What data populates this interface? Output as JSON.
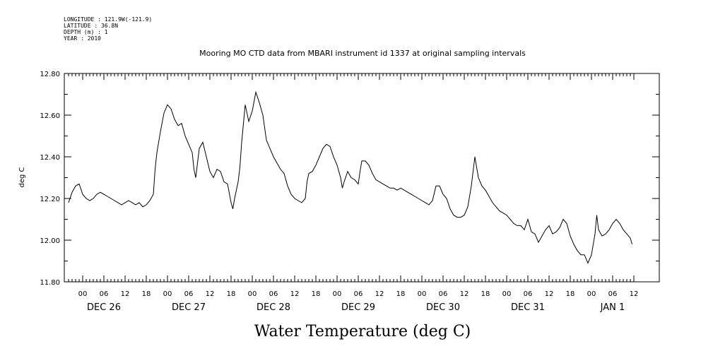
{
  "metadata": [
    "LONGITUDE : 121.9W(-121.9)",
    "LATITUDE : 36.8N",
    "DEPTH (m) : 1",
    "YEAR : 2010"
  ],
  "chart_data": {
    "type": "line",
    "title": "Mooring MO CTD data from MBARI instrument id 1337 at original sampling intervals",
    "xlabel": "Water Temperature (deg C)",
    "ylabel": "deg C",
    "ylim": [
      11.8,
      12.8
    ],
    "y_ticks": [
      "11.80",
      "12.00",
      "12.20",
      "12.40",
      "12.60",
      "12.80"
    ],
    "x_unit": "hours since 2010-12-26 00:00",
    "xlim": [
      -4,
      156
    ],
    "hour_tick_labels": [
      "00",
      "06",
      "12",
      "18"
    ],
    "day_labels": [
      "DEC 26",
      "DEC 27",
      "DEC 28",
      "DEC 29",
      "DEC 30",
      "DEC 31",
      "JAN  1"
    ],
    "grid": false,
    "series": [
      {
        "values": [
          [
            -4,
            12.18
          ],
          [
            -3,
            12.23
          ],
          [
            -2,
            12.26
          ],
          [
            -1,
            12.27
          ],
          [
            0,
            12.22
          ],
          [
            1,
            12.2
          ],
          [
            2,
            12.19
          ],
          [
            3,
            12.2
          ],
          [
            4,
            12.22
          ],
          [
            5,
            12.23
          ],
          [
            6,
            12.22
          ],
          [
            7,
            12.21
          ],
          [
            8,
            12.2
          ],
          [
            9,
            12.19
          ],
          [
            10,
            12.18
          ],
          [
            11,
            12.17
          ],
          [
            12,
            12.18
          ],
          [
            13,
            12.19
          ],
          [
            14,
            12.18
          ],
          [
            15,
            12.17
          ],
          [
            16,
            12.18
          ],
          [
            17,
            12.16
          ],
          [
            18,
            12.17
          ],
          [
            19,
            12.19
          ],
          [
            20,
            12.22
          ],
          [
            20.5,
            12.34
          ],
          [
            21,
            12.42
          ],
          [
            22,
            12.52
          ],
          [
            23,
            12.61
          ],
          [
            24,
            12.65
          ],
          [
            25,
            12.63
          ],
          [
            26,
            12.58
          ],
          [
            27,
            12.55
          ],
          [
            28,
            12.56
          ],
          [
            29,
            12.5
          ],
          [
            30,
            12.46
          ],
          [
            31,
            12.42
          ],
          [
            31.5,
            12.34
          ],
          [
            32,
            12.3
          ],
          [
            33,
            12.44
          ],
          [
            34,
            12.47
          ],
          [
            35,
            12.4
          ],
          [
            36,
            12.33
          ],
          [
            37,
            12.3
          ],
          [
            38,
            12.34
          ],
          [
            39,
            12.33
          ],
          [
            40,
            12.28
          ],
          [
            41,
            12.27
          ],
          [
            42,
            12.18
          ],
          [
            42.5,
            12.15
          ],
          [
            43,
            12.2
          ],
          [
            44,
            12.28
          ],
          [
            44.5,
            12.35
          ],
          [
            45,
            12.47
          ],
          [
            46,
            12.65
          ],
          [
            47,
            12.57
          ],
          [
            48,
            12.62
          ],
          [
            49,
            12.71
          ],
          [
            50,
            12.66
          ],
          [
            51,
            12.6
          ],
          [
            52,
            12.48
          ],
          [
            53,
            12.44
          ],
          [
            54,
            12.4
          ],
          [
            55,
            12.37
          ],
          [
            56,
            12.34
          ],
          [
            57,
            12.32
          ],
          [
            58,
            12.26
          ],
          [
            59,
            12.22
          ],
          [
            60,
            12.2
          ],
          [
            61,
            12.19
          ],
          [
            62,
            12.18
          ],
          [
            63,
            12.2
          ],
          [
            63.5,
            12.28
          ],
          [
            64,
            12.32
          ],
          [
            65,
            12.33
          ],
          [
            66,
            12.36
          ],
          [
            67,
            12.4
          ],
          [
            68,
            12.44
          ],
          [
            69,
            12.46
          ],
          [
            70,
            12.45
          ],
          [
            71,
            12.4
          ],
          [
            72,
            12.36
          ],
          [
            73,
            12.3
          ],
          [
            73.5,
            12.25
          ],
          [
            74,
            12.28
          ],
          [
            75,
            12.33
          ],
          [
            76,
            12.3
          ],
          [
            77,
            12.29
          ],
          [
            78,
            12.27
          ],
          [
            78.5,
            12.33
          ],
          [
            79,
            12.38
          ],
          [
            80,
            12.38
          ],
          [
            81,
            12.36
          ],
          [
            82,
            12.32
          ],
          [
            83,
            12.29
          ],
          [
            84,
            12.28
          ],
          [
            85,
            12.27
          ],
          [
            86,
            12.26
          ],
          [
            87,
            12.25
          ],
          [
            88,
            12.25
          ],
          [
            89,
            12.24
          ],
          [
            90,
            12.25
          ],
          [
            91,
            12.24
          ],
          [
            92,
            12.23
          ],
          [
            93,
            12.22
          ],
          [
            94,
            12.21
          ],
          [
            95,
            12.2
          ],
          [
            96,
            12.19
          ],
          [
            97,
            12.18
          ],
          [
            98,
            12.17
          ],
          [
            99,
            12.19
          ],
          [
            100,
            12.26
          ],
          [
            101,
            12.26
          ],
          [
            102,
            12.22
          ],
          [
            103,
            12.2
          ],
          [
            104,
            12.15
          ],
          [
            105,
            12.12
          ],
          [
            106,
            12.11
          ],
          [
            107,
            12.11
          ],
          [
            108,
            12.12
          ],
          [
            109,
            12.16
          ],
          [
            110,
            12.26
          ],
          [
            111,
            12.4
          ],
          [
            112,
            12.3
          ],
          [
            113,
            12.26
          ],
          [
            114,
            12.24
          ],
          [
            115,
            12.21
          ],
          [
            116,
            12.18
          ],
          [
            117,
            12.16
          ],
          [
            118,
            12.14
          ],
          [
            119,
            12.13
          ],
          [
            120,
            12.12
          ],
          [
            121,
            12.1
          ],
          [
            122,
            12.08
          ],
          [
            123,
            12.07
          ],
          [
            124,
            12.07
          ],
          [
            125,
            12.05
          ],
          [
            126,
            12.1
          ],
          [
            127,
            12.04
          ],
          [
            128,
            12.03
          ],
          [
            129,
            11.99
          ],
          [
            130,
            12.02
          ],
          [
            131,
            12.05
          ],
          [
            132,
            12.07
          ],
          [
            133,
            12.03
          ],
          [
            134,
            12.04
          ],
          [
            135,
            12.06
          ],
          [
            136,
            12.1
          ],
          [
            137,
            12.08
          ],
          [
            138,
            12.02
          ],
          [
            139,
            11.98
          ],
          [
            140,
            11.95
          ],
          [
            141,
            11.93
          ],
          [
            142,
            11.93
          ],
          [
            143,
            11.89
          ],
          [
            144,
            11.93
          ],
          [
            145,
            12.03
          ],
          [
            145.5,
            12.12
          ],
          [
            146,
            12.05
          ],
          [
            147,
            12.02
          ],
          [
            148,
            12.03
          ],
          [
            149,
            12.05
          ],
          [
            150,
            12.08
          ],
          [
            151,
            12.1
          ],
          [
            152,
            12.08
          ],
          [
            153,
            12.05
          ],
          [
            154,
            12.03
          ],
          [
            155,
            12.01
          ],
          [
            155.5,
            11.98
          ]
        ]
      }
    ]
  }
}
